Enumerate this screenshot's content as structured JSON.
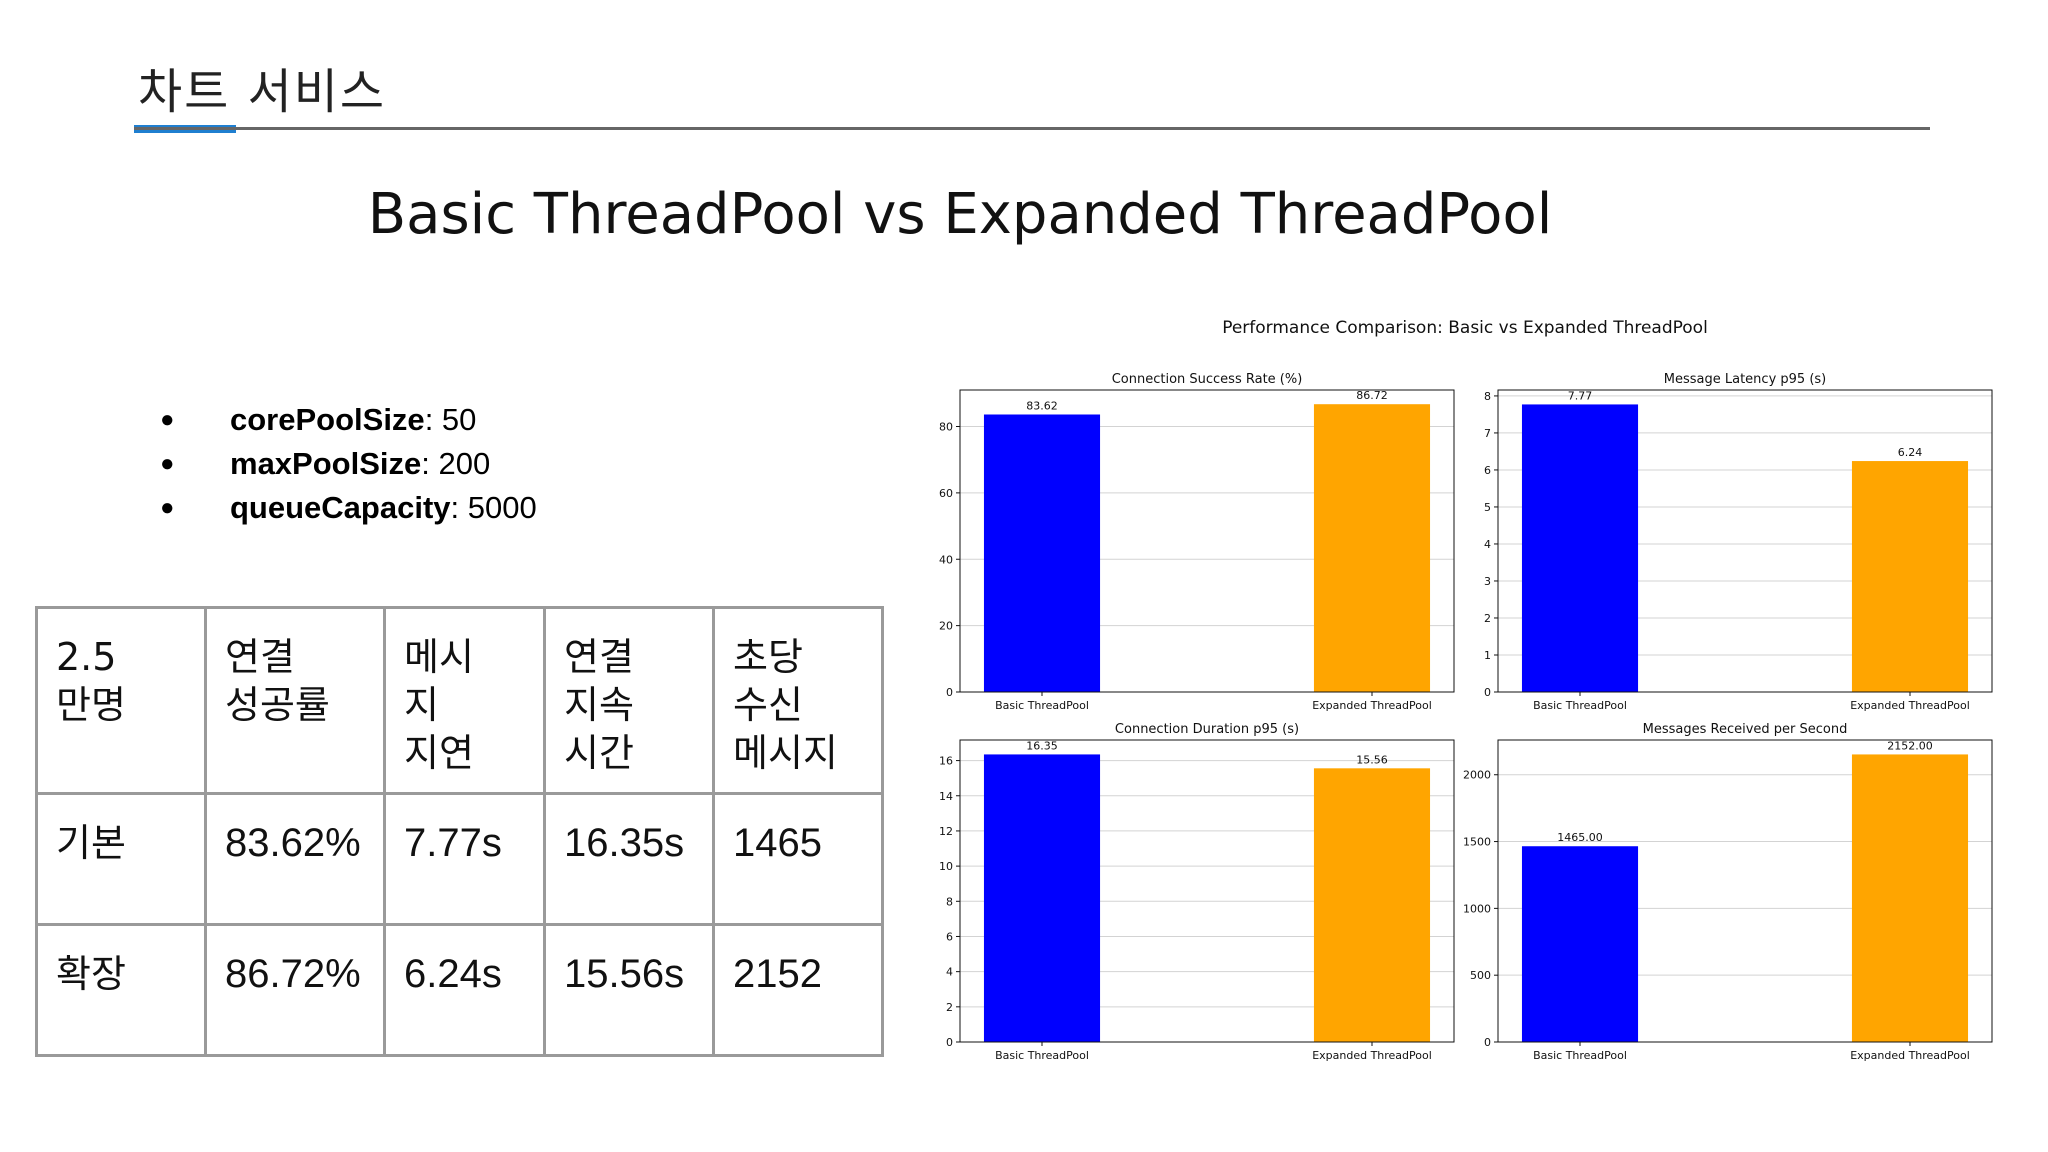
{
  "header": {
    "title": "차트 서비스"
  },
  "slide_title": "Basic ThreadPool vs Expanded ThreadPool",
  "config": [
    {
      "key": "corePoolSize",
      "value": ": 50"
    },
    {
      "key": "maxPoolSize",
      "value": ": 200"
    },
    {
      "key": "queueCapacity",
      "value": ": 5000"
    }
  ],
  "table": {
    "headers": [
      "2.5\n만명",
      "연결\n성공률",
      "메시\n지\n지연",
      "연결\n지속\n시간",
      "초당\n수신\n메시지"
    ],
    "rows": [
      [
        "기본",
        "83.62%",
        "7.77s",
        "16.35s",
        "1465"
      ],
      [
        "확장",
        "86.72%",
        "6.24s",
        "15.56s",
        "2152"
      ]
    ]
  },
  "chart_data": {
    "title": "Performance Comparison: Basic vs Expanded ThreadPool",
    "colors": [
      "#0000ff",
      "#ffa500"
    ],
    "subplots": [
      {
        "type": "bar",
        "title": "Connection Success Rate (%)",
        "categories": [
          "Basic ThreadPool",
          "Expanded ThreadPool"
        ],
        "values": [
          83.62,
          86.72
        ],
        "labels": [
          "83.62",
          "86.72"
        ],
        "ylim": [
          0,
          91
        ],
        "yticks": [
          0,
          20,
          40,
          60,
          80
        ],
        "grid": true
      },
      {
        "type": "bar",
        "title": "Message Latency p95 (s)",
        "categories": [
          "Basic ThreadPool",
          "Expanded ThreadPool"
        ],
        "values": [
          7.77,
          6.24
        ],
        "labels": [
          "7.77",
          "6.24"
        ],
        "ylim": [
          0,
          8.16
        ],
        "yticks": [
          0,
          1,
          2,
          3,
          4,
          5,
          6,
          7,
          8
        ],
        "grid": true
      },
      {
        "type": "bar",
        "title": "Connection Duration p95 (s)",
        "categories": [
          "Basic ThreadPool",
          "Expanded ThreadPool"
        ],
        "values": [
          16.35,
          15.56
        ],
        "labels": [
          "16.35",
          "15.56"
        ],
        "ylim": [
          0,
          17.17
        ],
        "yticks": [
          0,
          2,
          4,
          6,
          8,
          10,
          12,
          14,
          16
        ],
        "grid": true
      },
      {
        "type": "bar",
        "title": "Messages Received per Second",
        "categories": [
          "Basic ThreadPool",
          "Expanded ThreadPool"
        ],
        "values": [
          1465.0,
          2152.0
        ],
        "labels": [
          "1465.00",
          "2152.00"
        ],
        "ylim": [
          0,
          2260
        ],
        "yticks": [
          0,
          500,
          1000,
          1500,
          2000
        ],
        "grid": true
      }
    ]
  }
}
